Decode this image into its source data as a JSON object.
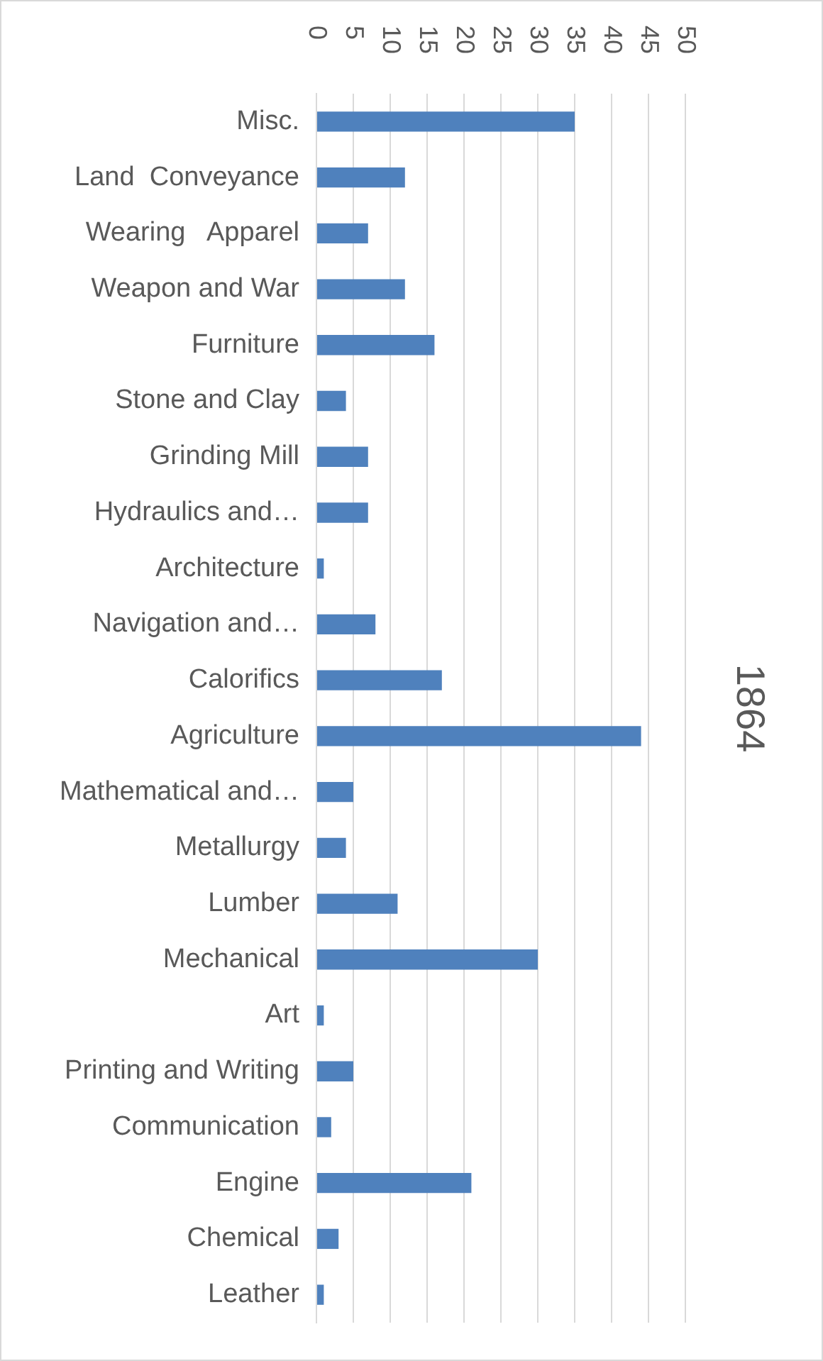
{
  "chart_data": {
    "type": "bar",
    "orientation": "horizontal",
    "title": "1864",
    "categories": [
      "Misc.",
      "Land  Conveyance",
      "Wearing   Apparel",
      "Weapon and War",
      "Furniture",
      "Stone and Clay",
      "Grinding Mill",
      "Hydraulics and…",
      "Architecture",
      "Navigation and…",
      "Calorifics",
      "Agriculture",
      "Mathematical and…",
      "Metallurgy",
      "Lumber",
      "Mechanical",
      "Art",
      "Printing and Writing",
      "Communication",
      "Engine",
      "Chemical",
      "Leather"
    ],
    "values": [
      35,
      12,
      7,
      12,
      16,
      4,
      7,
      7,
      1,
      8,
      17,
      44,
      5,
      4,
      11,
      30,
      1,
      5,
      2,
      21,
      3,
      1
    ],
    "color": "#4f81bd",
    "xlim": [
      0,
      50
    ],
    "xticks": [
      0,
      5,
      10,
      15,
      20,
      25,
      30,
      35,
      40,
      45,
      50
    ],
    "grid": "x",
    "legend": false
  }
}
